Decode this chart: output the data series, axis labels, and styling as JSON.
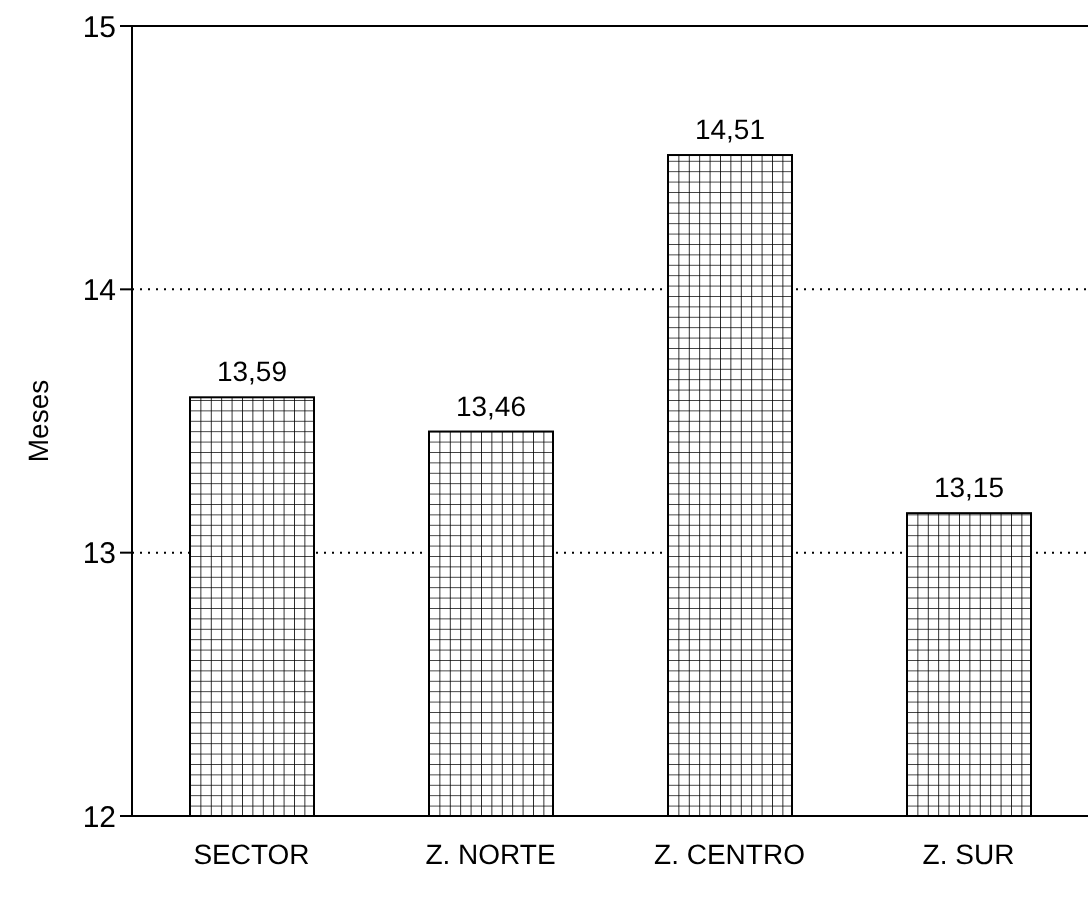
{
  "chart_data": {
    "type": "bar",
    "ylabel": "Meses",
    "categories": [
      "SECTOR",
      "Z. NORTE",
      "Z. CENTRO",
      "Z. SUR"
    ],
    "values": [
      13.59,
      13.46,
      14.51,
      13.15
    ],
    "value_labels": [
      "13,59",
      "13,46",
      "14,51",
      "13,15"
    ],
    "color": "#000000",
    "ylim": [
      12,
      15
    ],
    "yticks": [
      12,
      13,
      14,
      15
    ],
    "grid": "y",
    "legend": false
  }
}
